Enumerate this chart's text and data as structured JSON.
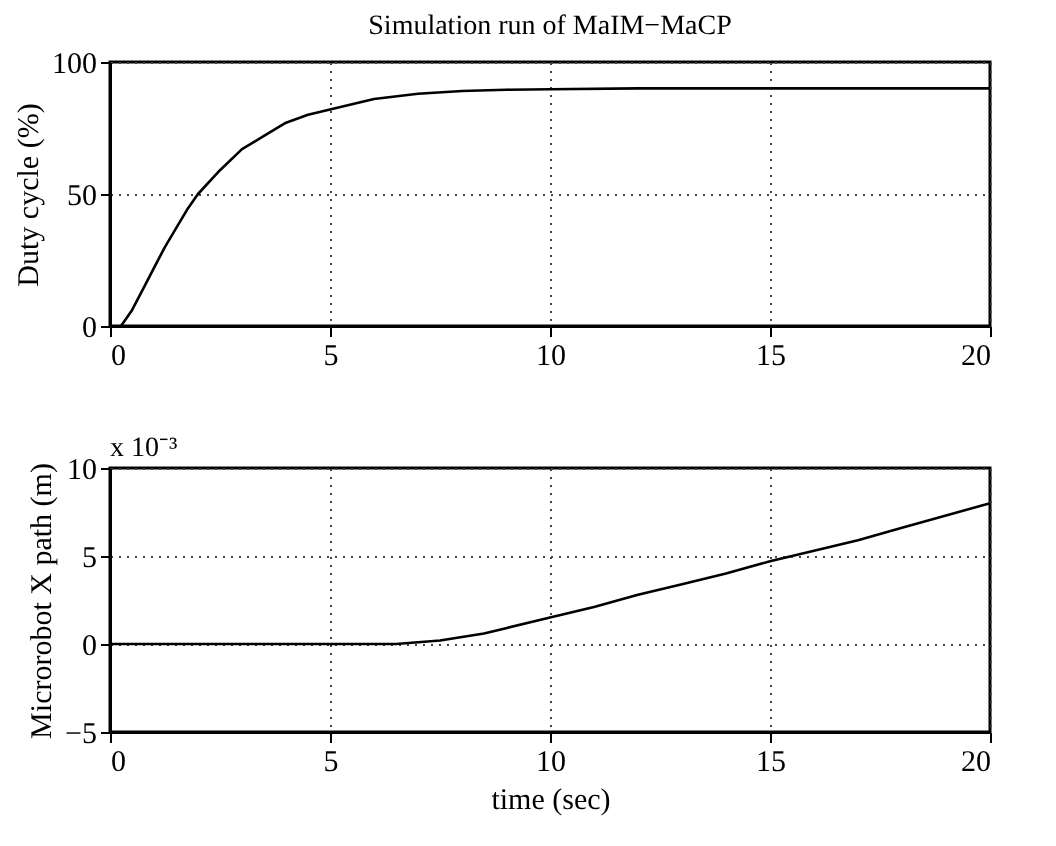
{
  "chart_data": [
    {
      "type": "line",
      "title": "Simulation run of MaIM−MaCP",
      "ylabel": "Duty cycle (%)",
      "xlim": [
        0,
        20
      ],
      "xticks": [
        0,
        5,
        10,
        15,
        20
      ],
      "ylim": [
        0,
        100
      ],
      "yticks": [
        0,
        50,
        100
      ],
      "grid": true,
      "line_style": "solid",
      "series": [
        {
          "color": "#000000",
          "x": [
            0.25,
            0.5,
            0.75,
            1,
            1.25,
            1.5,
            1.75,
            2,
            2.5,
            3,
            3.5,
            4,
            4.5,
            5,
            6,
            7,
            8,
            9,
            10,
            12,
            15,
            20
          ],
          "values": [
            0,
            6,
            14,
            22,
            30,
            37,
            44,
            50,
            59,
            67,
            72,
            77,
            80,
            82,
            86,
            88,
            89,
            89.5,
            89.7,
            90,
            90,
            90
          ]
        }
      ]
    },
    {
      "type": "line",
      "xlabel": "time (sec)",
      "ylabel": "Microrobot X path (m)",
      "annotations": [
        "x 10⁻³"
      ],
      "xlim": [
        0,
        20
      ],
      "xticks": [
        0,
        5,
        10,
        15,
        20
      ],
      "ylim": [
        -5,
        10
      ],
      "yticks": [
        -5,
        0,
        5,
        10
      ],
      "grid": true,
      "line_style": "solid",
      "series": [
        {
          "color": "#000000",
          "x": [
            0,
            2,
            4,
            6,
            6.5,
            7,
            7.5,
            8,
            8.5,
            9,
            10,
            11,
            12,
            13,
            14,
            15,
            16,
            17,
            18,
            19,
            20
          ],
          "values": [
            0,
            0,
            0,
            0,
            0,
            0.1,
            0.2,
            0.4,
            0.6,
            0.9,
            1.5,
            2.1,
            2.8,
            3.4,
            4.0,
            4.7,
            5.3,
            5.9,
            6.6,
            7.3,
            8.0
          ]
        }
      ]
    }
  ]
}
